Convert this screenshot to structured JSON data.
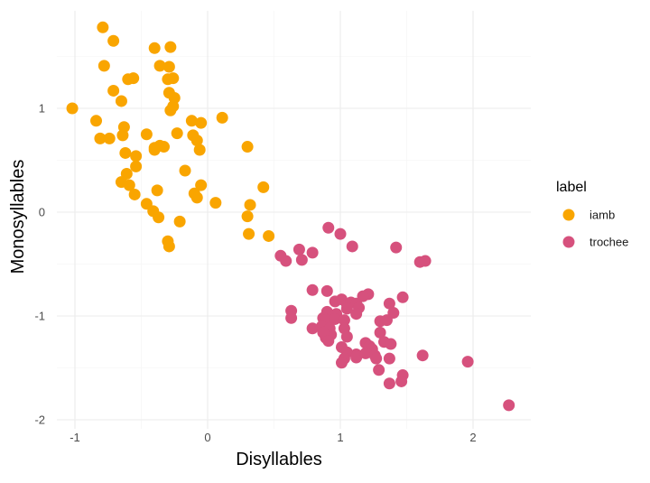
{
  "chart_data": {
    "type": "scatter",
    "title": "",
    "xlabel": "Disyllables",
    "ylabel": "Monosyllables",
    "xlim": [
      -1.1,
      2.4
    ],
    "ylim": [
      -2.05,
      1.95
    ],
    "x_ticks": [
      -1,
      0,
      1,
      2
    ],
    "y_ticks": [
      -2,
      -1,
      0,
      1
    ],
    "x_tick_labels": [
      "-1",
      "0",
      "1",
      "2"
    ],
    "y_tick_labels": [
      "-2",
      "-1",
      "0",
      "1"
    ],
    "grid": true,
    "legend": {
      "title": "label",
      "position": "right"
    },
    "series": [
      {
        "name": "iamb",
        "color": "#F9A500",
        "points": [
          [
            -0.79,
            1.78
          ],
          [
            -0.71,
            1.65
          ],
          [
            -0.4,
            1.58
          ],
          [
            -0.28,
            1.59
          ],
          [
            -0.78,
            1.41
          ],
          [
            -0.36,
            1.41
          ],
          [
            -0.29,
            1.4
          ],
          [
            -0.6,
            1.28
          ],
          [
            -0.56,
            1.29
          ],
          [
            -0.3,
            1.28
          ],
          [
            -0.26,
            1.29
          ],
          [
            -0.71,
            1.17
          ],
          [
            -0.29,
            1.15
          ],
          [
            -0.25,
            1.1
          ],
          [
            -0.65,
            1.07
          ],
          [
            -0.26,
            1.02
          ],
          [
            -0.28,
            0.98
          ],
          [
            -1.02,
            1.0
          ],
          [
            -0.84,
            0.88
          ],
          [
            -0.12,
            0.88
          ],
          [
            -0.05,
            0.86
          ],
          [
            0.11,
            0.91
          ],
          [
            -0.63,
            0.82
          ],
          [
            -0.81,
            0.71
          ],
          [
            -0.74,
            0.71
          ],
          [
            -0.64,
            0.74
          ],
          [
            -0.46,
            0.75
          ],
          [
            -0.23,
            0.76
          ],
          [
            -0.11,
            0.74
          ],
          [
            -0.08,
            0.69
          ],
          [
            -0.4,
            0.62
          ],
          [
            -0.36,
            0.64
          ],
          [
            -0.33,
            0.63
          ],
          [
            -0.4,
            0.6
          ],
          [
            -0.06,
            0.6
          ],
          [
            0.3,
            0.63
          ],
          [
            -0.62,
            0.57
          ],
          [
            -0.54,
            0.54
          ],
          [
            -0.54,
            0.44
          ],
          [
            -0.17,
            0.4
          ],
          [
            -0.61,
            0.37
          ],
          [
            -0.65,
            0.29
          ],
          [
            -0.59,
            0.26
          ],
          [
            -0.05,
            0.26
          ],
          [
            0.42,
            0.24
          ],
          [
            -0.38,
            0.21
          ],
          [
            -0.55,
            0.17
          ],
          [
            -0.1,
            0.18
          ],
          [
            -0.08,
            0.14
          ],
          [
            0.06,
            0.09
          ],
          [
            0.32,
            0.07
          ],
          [
            -0.46,
            0.08
          ],
          [
            -0.41,
            0.01
          ],
          [
            -0.37,
            -0.05
          ],
          [
            0.3,
            -0.04
          ],
          [
            -0.21,
            -0.09
          ],
          [
            0.31,
            -0.21
          ],
          [
            0.46,
            -0.23
          ],
          [
            -0.3,
            -0.28
          ],
          [
            -0.29,
            -0.33
          ]
        ]
      },
      {
        "name": "trochee",
        "color": "#D6517D",
        "points": [
          [
            0.91,
            -0.15
          ],
          [
            1.0,
            -0.21
          ],
          [
            1.09,
            -0.33
          ],
          [
            1.42,
            -0.34
          ],
          [
            0.69,
            -0.36
          ],
          [
            0.79,
            -0.39
          ],
          [
            0.55,
            -0.42
          ],
          [
            0.71,
            -0.46
          ],
          [
            0.59,
            -0.47
          ],
          [
            1.6,
            -0.48
          ],
          [
            1.64,
            -0.47
          ],
          [
            0.79,
            -0.75
          ],
          [
            0.9,
            -0.76
          ],
          [
            1.21,
            -0.79
          ],
          [
            1.17,
            -0.81
          ],
          [
            1.47,
            -0.82
          ],
          [
            0.96,
            -0.86
          ],
          [
            1.01,
            -0.84
          ],
          [
            1.05,
            -0.89
          ],
          [
            1.08,
            -0.87
          ],
          [
            1.12,
            -0.88
          ],
          [
            1.14,
            -0.92
          ],
          [
            1.37,
            -0.88
          ],
          [
            1.05,
            -0.93
          ],
          [
            0.9,
            -0.96
          ],
          [
            0.97,
            -0.98
          ],
          [
            1.12,
            -0.98
          ],
          [
            1.4,
            -0.97
          ],
          [
            0.63,
            -0.95
          ],
          [
            0.63,
            -1.02
          ],
          [
            0.87,
            -1.02
          ],
          [
            0.89,
            -1.04
          ],
          [
            0.96,
            -1.03
          ],
          [
            1.03,
            -1.04
          ],
          [
            1.3,
            -1.05
          ],
          [
            1.35,
            -1.04
          ],
          [
            0.79,
            -1.12
          ],
          [
            0.86,
            -1.1
          ],
          [
            0.92,
            -1.12
          ],
          [
            1.03,
            -1.12
          ],
          [
            0.93,
            -1.18
          ],
          [
            0.89,
            -1.21
          ],
          [
            0.87,
            -1.16
          ],
          [
            1.05,
            -1.2
          ],
          [
            1.3,
            -1.16
          ],
          [
            0.91,
            -1.24
          ],
          [
            1.01,
            -1.3
          ],
          [
            1.33,
            -1.25
          ],
          [
            1.38,
            -1.27
          ],
          [
            1.19,
            -1.26
          ],
          [
            1.22,
            -1.29
          ],
          [
            1.24,
            -1.32
          ],
          [
            1.05,
            -1.35
          ],
          [
            1.12,
            -1.37
          ],
          [
            1.12,
            -1.4
          ],
          [
            1.19,
            -1.36
          ],
          [
            1.26,
            -1.38
          ],
          [
            1.27,
            -1.41
          ],
          [
            1.37,
            -1.41
          ],
          [
            1.62,
            -1.38
          ],
          [
            1.03,
            -1.41
          ],
          [
            1.01,
            -1.45
          ],
          [
            1.96,
            -1.44
          ],
          [
            1.29,
            -1.52
          ],
          [
            1.47,
            -1.57
          ],
          [
            1.46,
            -1.63
          ],
          [
            1.37,
            -1.65
          ],
          [
            2.27,
            -1.86
          ]
        ]
      }
    ]
  }
}
